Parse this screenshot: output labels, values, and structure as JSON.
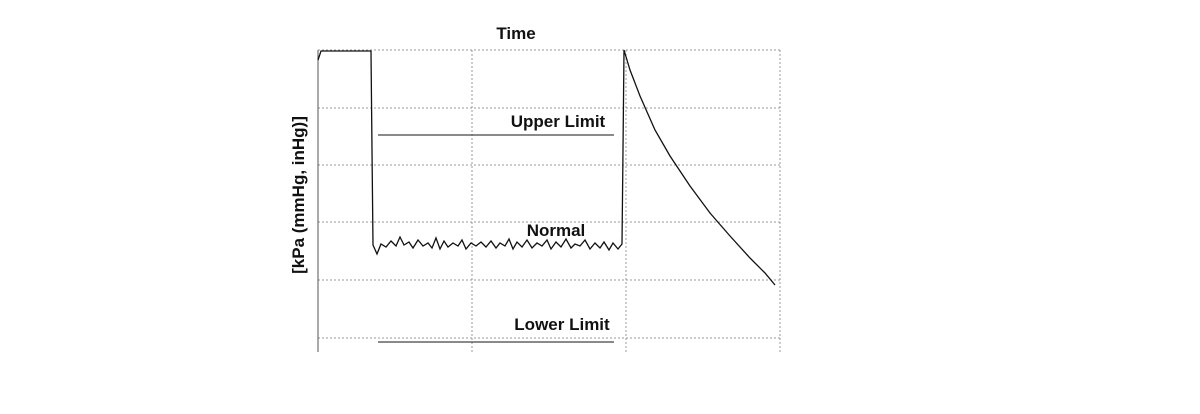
{
  "title": "Time",
  "y_axis_label": "[kPa (mmHg, inHg)]",
  "labels": {
    "upper_limit": "Upper Limit",
    "normal": "Normal",
    "lower_limit": "Lower Limit"
  }
}
